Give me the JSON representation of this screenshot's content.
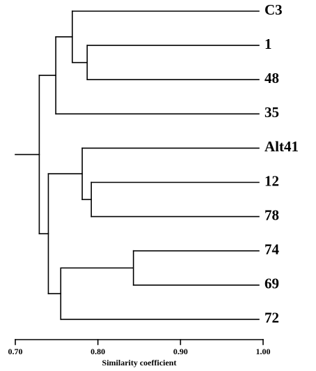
{
  "chart_data": {
    "type": "dendrogram",
    "x_label": "Similarity coefficient",
    "xlim": [
      0.7,
      1.0
    ],
    "xticks": [
      {
        "value": 0.7,
        "label": "0.70"
      },
      {
        "value": 0.8,
        "label": "0.80"
      },
      {
        "value": 0.9,
        "label": "0.90"
      },
      {
        "value": 1.0,
        "label": "1.00"
      }
    ],
    "color": "#000000",
    "tree": {
      "height": 0.729,
      "children": [
        {
          "height": 0.749,
          "children": [
            {
              "height": 0.769,
              "children": [
                {
                  "label": "C3"
                },
                {
                  "height": 0.787,
                  "children": [
                    {
                      "label": "1"
                    },
                    {
                      "label": "48"
                    }
                  ]
                }
              ]
            },
            {
              "label": "35"
            }
          ]
        },
        {
          "height": 0.74,
          "children": [
            {
              "height": 0.781,
              "children": [
                {
                  "label": "Alt41"
                },
                {
                  "height": 0.792,
                  "children": [
                    {
                      "label": "12"
                    },
                    {
                      "label": "78"
                    }
                  ]
                }
              ]
            },
            {
              "height": 0.755,
              "children": [
                {
                  "height": 0.843,
                  "children": [
                    {
                      "label": "74"
                    },
                    {
                      "label": "69"
                    }
                  ]
                },
                {
                  "label": "72"
                }
              ]
            }
          ]
        }
      ]
    }
  }
}
